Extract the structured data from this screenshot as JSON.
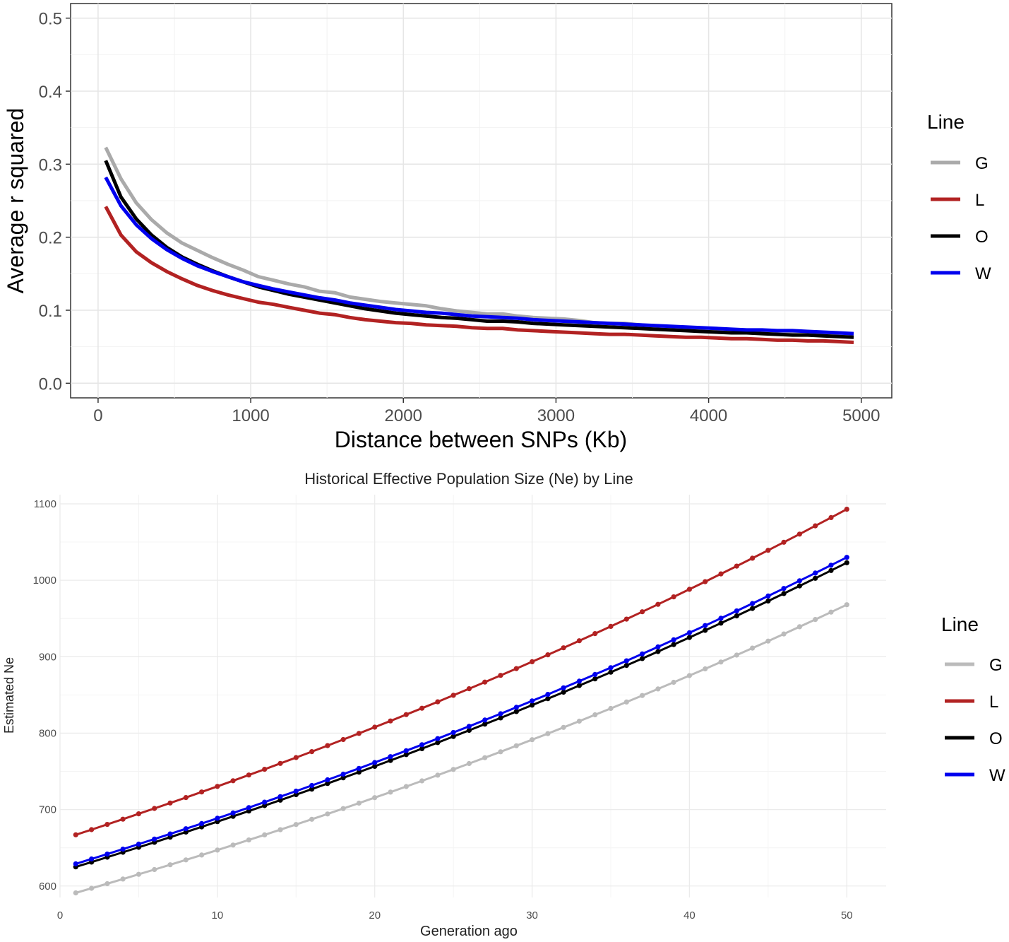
{
  "chart_data": [
    {
      "type": "line",
      "title": "",
      "xlabel": "Distance between SNPs (Kb)",
      "ylabel": "Average r squared",
      "xlim": [
        -180,
        5200
      ],
      "ylim": [
        -0.02,
        0.52
      ],
      "xticks": [
        0,
        1000,
        2000,
        3000,
        4000,
        5000
      ],
      "xtick_labels": [
        "0",
        "1000",
        "2000",
        "3000",
        "4000",
        "5000"
      ],
      "yticks": [
        0.0,
        0.1,
        0.2,
        0.3,
        0.4,
        0.5
      ],
      "ytick_labels": [
        "0.0",
        "0.1",
        "0.2",
        "0.3",
        "0.4",
        "0.5"
      ],
      "grid": true,
      "panel_border": true,
      "legend": {
        "title": "Line",
        "position": "right"
      },
      "x": [
        50,
        150,
        250,
        350,
        450,
        550,
        650,
        750,
        850,
        950,
        1050,
        1150,
        1250,
        1350,
        1450,
        1550,
        1650,
        1750,
        1850,
        1950,
        2050,
        2150,
        2250,
        2350,
        2450,
        2550,
        2650,
        2750,
        2850,
        2950,
        3050,
        3150,
        3250,
        3350,
        3450,
        3550,
        3650,
        3750,
        3850,
        3950,
        4050,
        4150,
        4250,
        4350,
        4450,
        4550,
        4650,
        4750,
        4850,
        4950
      ],
      "series": [
        {
          "name": "G",
          "color": "#aaaaaa",
          "values": [
            0.323,
            0.28,
            0.247,
            0.224,
            0.206,
            0.192,
            0.182,
            0.172,
            0.163,
            0.155,
            0.146,
            0.141,
            0.136,
            0.132,
            0.126,
            0.124,
            0.118,
            0.115,
            0.112,
            0.11,
            0.108,
            0.106,
            0.102,
            0.099,
            0.097,
            0.095,
            0.095,
            0.092,
            0.09,
            0.089,
            0.088,
            0.086,
            0.083,
            0.082,
            0.082,
            0.08,
            0.078,
            0.077,
            0.076,
            0.075,
            0.074,
            0.073,
            0.072,
            0.072,
            0.071,
            0.07,
            0.069,
            0.068,
            0.067,
            0.066
          ]
        },
        {
          "name": "L",
          "color": "#b22222",
          "values": [
            0.242,
            0.203,
            0.18,
            0.165,
            0.153,
            0.143,
            0.134,
            0.127,
            0.121,
            0.116,
            0.111,
            0.108,
            0.104,
            0.1,
            0.096,
            0.094,
            0.09,
            0.087,
            0.085,
            0.083,
            0.082,
            0.08,
            0.079,
            0.078,
            0.076,
            0.075,
            0.075,
            0.073,
            0.072,
            0.071,
            0.07,
            0.069,
            0.068,
            0.067,
            0.067,
            0.066,
            0.065,
            0.064,
            0.063,
            0.063,
            0.062,
            0.061,
            0.061,
            0.06,
            0.059,
            0.059,
            0.058,
            0.058,
            0.057,
            0.056
          ]
        },
        {
          "name": "O",
          "color": "#000000",
          "values": [
            0.305,
            0.255,
            0.225,
            0.203,
            0.186,
            0.173,
            0.163,
            0.154,
            0.146,
            0.139,
            0.132,
            0.127,
            0.122,
            0.118,
            0.114,
            0.11,
            0.106,
            0.102,
            0.099,
            0.096,
            0.094,
            0.092,
            0.09,
            0.089,
            0.087,
            0.085,
            0.085,
            0.084,
            0.082,
            0.081,
            0.08,
            0.079,
            0.078,
            0.077,
            0.076,
            0.075,
            0.074,
            0.073,
            0.072,
            0.071,
            0.07,
            0.069,
            0.069,
            0.068,
            0.067,
            0.066,
            0.066,
            0.065,
            0.064,
            0.063
          ]
        },
        {
          "name": "W",
          "color": "#0000ee",
          "values": [
            0.282,
            0.243,
            0.217,
            0.198,
            0.183,
            0.171,
            0.161,
            0.153,
            0.146,
            0.139,
            0.134,
            0.129,
            0.125,
            0.121,
            0.117,
            0.114,
            0.11,
            0.107,
            0.104,
            0.101,
            0.099,
            0.097,
            0.096,
            0.094,
            0.092,
            0.091,
            0.09,
            0.089,
            0.087,
            0.086,
            0.085,
            0.084,
            0.083,
            0.082,
            0.081,
            0.08,
            0.079,
            0.078,
            0.077,
            0.076,
            0.075,
            0.074,
            0.073,
            0.073,
            0.072,
            0.072,
            0.071,
            0.07,
            0.069,
            0.068
          ]
        }
      ]
    },
    {
      "type": "line",
      "title": "Historical Effective Population Size (Ne) by Line",
      "xlabel": "Generation ago",
      "ylabel": "Estimated Ne",
      "xlim": [
        0,
        52.5
      ],
      "ylim": [
        585,
        1112
      ],
      "xticks": [
        0,
        10,
        20,
        30,
        40,
        50
      ],
      "xtick_labels": [
        "0",
        "10",
        "20",
        "30",
        "40",
        "50"
      ],
      "yticks": [
        600,
        700,
        800,
        900,
        1000,
        1100
      ],
      "ytick_labels": [
        "600",
        "700",
        "800",
        "900",
        "1000",
        "1100"
      ],
      "grid": true,
      "panel_border": false,
      "markers": true,
      "legend": {
        "title": "Line",
        "position": "right"
      },
      "x": [
        1,
        50
      ],
      "series": [
        {
          "name": "G",
          "color": "#bbbbbb",
          "start": 591,
          "end": 968
        },
        {
          "name": "L",
          "color": "#b22222",
          "start": 667,
          "end": 1093
        },
        {
          "name": "O",
          "color": "#000000",
          "start": 625,
          "end": 1023
        },
        {
          "name": "W",
          "color": "#0000ee",
          "start": 629,
          "end": 1030
        }
      ]
    }
  ]
}
